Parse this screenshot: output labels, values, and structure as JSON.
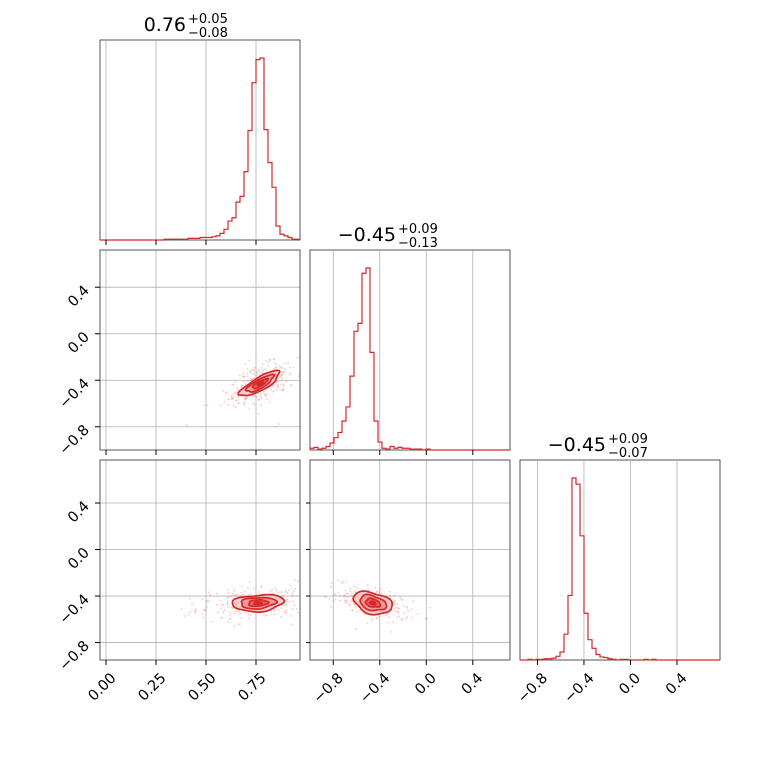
{
  "chart_data": {
    "type": "corner",
    "color": "#d62728",
    "fill_colors": [
      "#f6c6c6",
      "#ee9595",
      "#e25a5a"
    ],
    "grid": true,
    "parameters": [
      {
        "title": {
          "median": "0.76",
          "plus": "+0.05",
          "minus": "−0.08"
        },
        "range": [
          -0.03,
          0.97
        ],
        "ticks": [
          {
            "value": 0.0,
            "label": "0.00"
          },
          {
            "value": 0.25,
            "label": "0.25"
          },
          {
            "value": 0.5,
            "label": "0.50"
          },
          {
            "value": 0.75,
            "label": "0.75"
          }
        ],
        "histogram": {
          "bin_start": -0.03,
          "bin_width": 0.02,
          "counts": [
            0,
            0,
            0,
            0,
            0,
            0,
            0,
            0,
            0,
            0,
            0,
            0,
            0,
            0,
            0,
            0,
            1,
            1,
            1,
            1,
            1,
            1,
            2,
            2,
            2,
            3,
            3,
            3,
            4,
            5,
            8,
            13,
            23,
            27,
            46,
            53,
            83,
            133,
            191,
            219,
            221,
            134,
            94,
            64,
            17,
            7,
            5,
            3,
            1,
            1
          ]
        }
      },
      {
        "title": {
          "median": "−0.45",
          "plus": "+0.09",
          "minus": "−0.13"
        },
        "range": [
          -1.0,
          0.72
        ],
        "ticks": [
          {
            "value": -0.8,
            "label": "−0.8"
          },
          {
            "value": -0.4,
            "label": "−0.4"
          },
          {
            "value": 0.0,
            "label": "0.0"
          },
          {
            "value": 0.4,
            "label": "0.4"
          }
        ],
        "histogram": {
          "bin_start": -1.0,
          "bin_width": 0.0344,
          "counts": [
            2,
            3,
            1,
            2,
            4,
            8,
            14,
            20,
            33,
            49,
            84,
            135,
            144,
            201,
            207,
            111,
            33,
            9,
            2,
            1,
            4,
            2,
            3,
            2,
            2,
            1,
            1,
            1,
            0,
            1,
            0,
            0,
            0,
            0,
            0,
            0,
            0,
            0,
            0,
            0,
            0,
            0,
            0,
            0,
            0,
            0,
            0,
            0,
            0,
            0
          ]
        }
      },
      {
        "title": {
          "median": "−0.45",
          "plus": "+0.09",
          "minus": "−0.07"
        },
        "range": [
          -0.95,
          0.77
        ],
        "ticks": [
          {
            "value": -0.8,
            "label": "−0.8"
          },
          {
            "value": -0.4,
            "label": "−0.4"
          },
          {
            "value": 0.0,
            "label": "0.0"
          },
          {
            "value": 0.4,
            "label": "0.4"
          }
        ],
        "histogram": {
          "bin_start": -0.95,
          "bin_width": 0.0344,
          "counts": [
            0,
            0,
            1,
            0,
            1,
            1,
            2,
            2,
            3,
            6,
            13,
            42,
            105,
            296,
            286,
            202,
            76,
            33,
            19,
            9,
            5,
            4,
            2,
            1,
            0,
            1,
            1,
            0,
            0,
            0,
            0,
            1,
            0,
            1,
            0,
            0,
            0,
            0,
            0,
            0,
            0,
            0,
            0,
            0,
            0,
            0,
            0,
            0,
            0,
            0
          ]
        }
      }
    ],
    "pairs": [
      {
        "xi": 0,
        "yi": 1,
        "center": [
          0.77,
          -0.43
        ],
        "angle_deg": 48,
        "axes": [
          0.14,
          0.045
        ],
        "scatter_sigma": [
          0.14,
          0.12
        ]
      },
      {
        "xi": 0,
        "yi": 2,
        "center": [
          0.76,
          -0.46
        ],
        "angle_deg": 8,
        "axes": [
          0.13,
          0.07
        ],
        "scatter_sigma": [
          0.17,
          0.12
        ]
      },
      {
        "xi": 1,
        "yi": 2,
        "center": [
          -0.46,
          -0.46
        ],
        "angle_deg": -15,
        "axes": [
          0.17,
          0.09
        ],
        "scatter_sigma": [
          0.18,
          0.11
        ]
      }
    ]
  }
}
